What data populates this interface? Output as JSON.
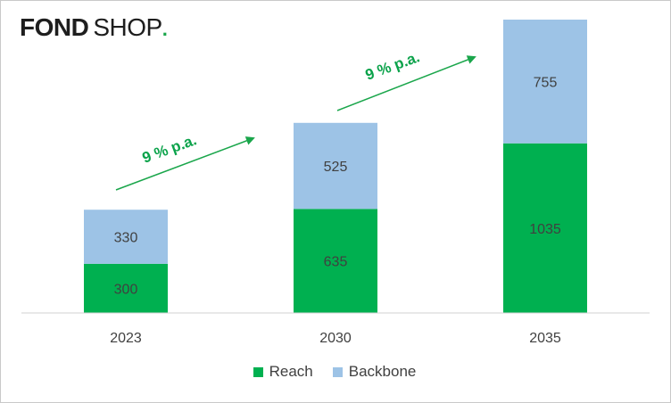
{
  "brand": {
    "name_bold": "FOND",
    "name_light": "SHOP",
    "dot": "."
  },
  "colors": {
    "reach": "#00b050",
    "backbone": "#9dc3e6",
    "growth": "#1aa64b"
  },
  "annotations": {
    "growth_1": "9 % p.a.",
    "growth_2": "9 % p.a."
  },
  "chart_data": {
    "type": "bar",
    "stacked": true,
    "categories": [
      "2023",
      "2030",
      "2035"
    ],
    "series": [
      {
        "name": "Reach",
        "values": [
          300,
          635,
          1035
        ]
      },
      {
        "name": "Backbone",
        "values": [
          330,
          525,
          755
        ]
      }
    ],
    "ylim": [
      0,
      1790
    ],
    "grid": false,
    "legend": "bottom"
  }
}
